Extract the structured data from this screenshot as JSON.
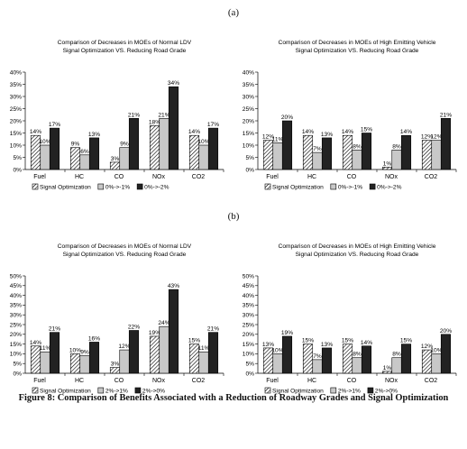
{
  "figure": {
    "label_a": "(a)",
    "label_b": "(b)",
    "caption": "Figure 8: Comparison of Benefits Associated with a Reduction of Roadway Grades and Signal Optimization"
  },
  "colors": {
    "signal": "#ffffff",
    "grade_small": "#c8c8c8",
    "grade_large": "#222222",
    "axis": "#000000"
  },
  "chart_data": [
    {
      "type": "bar",
      "title": "Comparison of Decreases in MOEs of Normal LDV",
      "subtitle": "Signal Optimization VS. Reducing Road Grade",
      "categories": [
        "Fuel",
        "HC",
        "CO",
        "NOx",
        "CO2"
      ],
      "ylim": [
        0,
        40
      ],
      "yticks": [
        "0%",
        "5%",
        "10%",
        "15%",
        "20%",
        "25%",
        "30%",
        "35%",
        "40%"
      ],
      "legend_position": "bottom",
      "series": [
        {
          "name": "Signal Optimization",
          "values": [
            14,
            9,
            3,
            18,
            14
          ],
          "labels": [
            "14%",
            "9%",
            "3%",
            "18%",
            "14%"
          ]
        },
        {
          "name": "0%->-1%",
          "values": [
            10,
            6,
            9,
            21,
            10
          ],
          "labels": [
            "10%",
            "6%",
            "9%",
            "21%",
            "10%"
          ]
        },
        {
          "name": "0%->-2%",
          "values": [
            17,
            13,
            21,
            34,
            17
          ],
          "labels": [
            "17%",
            "13%",
            "21%",
            "34%",
            "17%"
          ]
        }
      ]
    },
    {
      "type": "bar",
      "title": "Comparison of Decreases in MOEs of High Emitting Vehicle",
      "subtitle": "Signal Optimization VS. Reducing Road Grade",
      "categories": [
        "Fuel",
        "HC",
        "CO",
        "NOx",
        "CO2"
      ],
      "ylim": [
        0,
        40
      ],
      "yticks": [
        "0%",
        "5%",
        "10%",
        "15%",
        "20%",
        "25%",
        "30%",
        "35%",
        "40%"
      ],
      "legend_position": "bottom",
      "series": [
        {
          "name": "Signal Optimization",
          "values": [
            12,
            14,
            14,
            1,
            12
          ],
          "labels": [
            "12%",
            "14%",
            "14%",
            "1%",
            "12%"
          ]
        },
        {
          "name": "0%->-1%",
          "values": [
            11,
            7,
            8,
            8,
            12
          ],
          "labels": [
            "11%",
            "7%",
            "8%",
            "8%",
            "12%"
          ]
        },
        {
          "name": "0%->-2%",
          "values": [
            20,
            13,
            15,
            14,
            21
          ],
          "labels": [
            "20%",
            "13%",
            "15%",
            "14%",
            "21%"
          ]
        }
      ]
    },
    {
      "type": "bar",
      "title": "Comparison of Decreases in MOEs of Normal LDV",
      "subtitle": "Signal Optimization VS. Reducing Road Grade",
      "categories": [
        "Fuel",
        "HC",
        "CO",
        "NOx",
        "CO2"
      ],
      "ylim": [
        0,
        50
      ],
      "yticks": [
        "0%",
        "5%",
        "10%",
        "15%",
        "20%",
        "25%",
        "30%",
        "35%",
        "40%",
        "45%",
        "50%"
      ],
      "legend_position": "bottom",
      "series": [
        {
          "name": "Signal Optimization",
          "values": [
            14,
            10,
            3,
            19,
            15
          ],
          "labels": [
            "14%",
            "10%",
            "3%",
            "19%",
            "15%"
          ]
        },
        {
          "name": "2%->1%",
          "values": [
            11,
            9,
            12,
            24,
            11
          ],
          "labels": [
            "11%",
            "9%",
            "12%",
            "24%",
            "11%"
          ]
        },
        {
          "name": "2%->0%",
          "values": [
            21,
            16,
            22,
            43,
            21
          ],
          "labels": [
            "21%",
            "16%",
            "22%",
            "43%",
            "21%"
          ]
        }
      ]
    },
    {
      "type": "bar",
      "title": "Comparison of Decreases in MOEs of High Emitting Vehicle",
      "subtitle": "Signal Optimization VS. Reducing Road Grade",
      "categories": [
        "Fuel",
        "HC",
        "CO",
        "NOx",
        "CO2"
      ],
      "ylim": [
        0,
        50
      ],
      "yticks": [
        "0%",
        "5%",
        "10%",
        "15%",
        "20%",
        "25%",
        "30%",
        "35%",
        "40%",
        "45%",
        "50%"
      ],
      "legend_position": "bottom",
      "series": [
        {
          "name": "Signal Optimization",
          "values": [
            13,
            15,
            15,
            1,
            12
          ],
          "labels": [
            "13%",
            "15%",
            "15%",
            "1%",
            "12%"
          ]
        },
        {
          "name": "2%->1%",
          "values": [
            10,
            7,
            8,
            8,
            10
          ],
          "labels": [
            "10%",
            "7%",
            "8%",
            "8%",
            "10%"
          ]
        },
        {
          "name": "2%->0%",
          "values": [
            19,
            13,
            14,
            15,
            20
          ],
          "labels": [
            "19%",
            "13%",
            "14%",
            "15%",
            "20%"
          ]
        }
      ]
    }
  ]
}
